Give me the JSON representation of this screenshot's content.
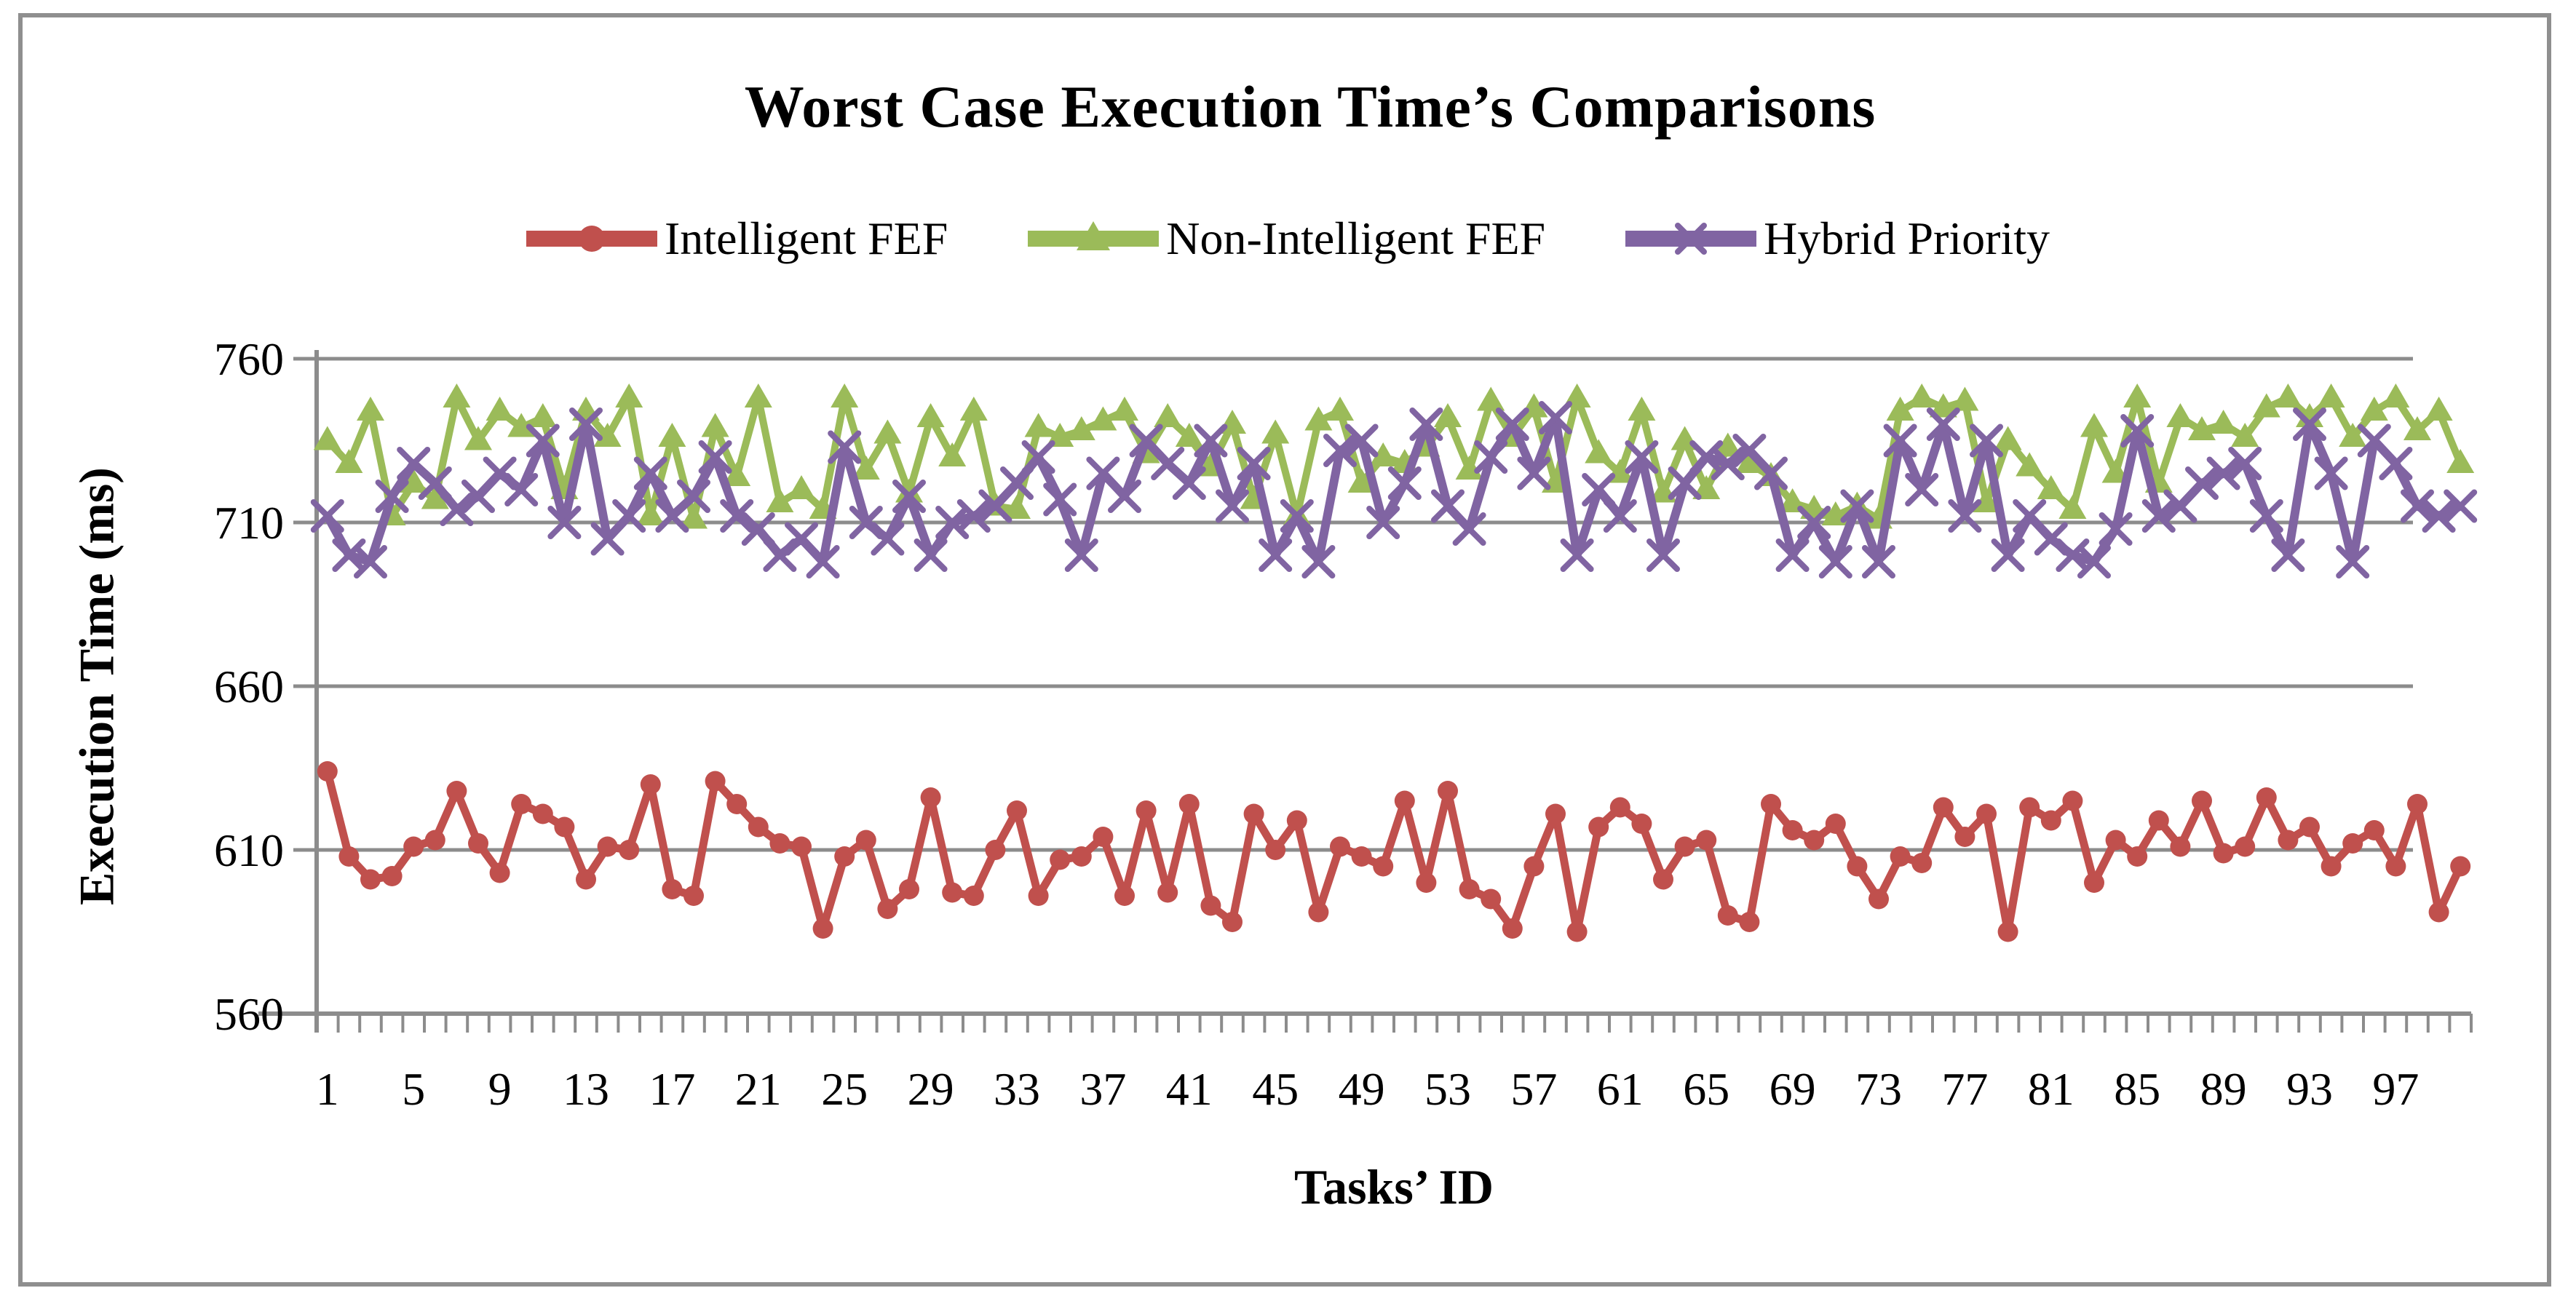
{
  "chart_data": {
    "type": "line",
    "title": "Worst Case Execution Time’s Comparisons",
    "xlabel": "Tasks’ ID",
    "ylabel": "Execution Time (ms)",
    "ylim": [
      560,
      760
    ],
    "xlim": [
      1,
      100
    ],
    "y_ticks": [
      760,
      710,
      660,
      610,
      560
    ],
    "x_tick_labels": [
      "1",
      "5",
      "9",
      "13",
      "17",
      "21",
      "25",
      "29",
      "33",
      "37",
      "41",
      "45",
      "49",
      "53",
      "57",
      "61",
      "65",
      "69",
      "73",
      "77",
      "81",
      "85",
      "89",
      "93",
      "97"
    ],
    "grid": true,
    "legend_position": "top",
    "axis_color": "#8C8C8C",
    "series": [
      {
        "name": "Intelligent FEF",
        "color": "#C0504D",
        "marker": "circle",
        "values": [
          634,
          608,
          601,
          602,
          611,
          613,
          628,
          612,
          603,
          624,
          621,
          617,
          601,
          611,
          610,
          630,
          598,
          596,
          631,
          624,
          617,
          612,
          611,
          586,
          608,
          613,
          592,
          598,
          626,
          597,
          596,
          610,
          622,
          596,
          607,
          608,
          614,
          596,
          622,
          597,
          624,
          593,
          588,
          621,
          610,
          619,
          591,
          611,
          608,
          605,
          625,
          600,
          628,
          598,
          595,
          586,
          605,
          621,
          585,
          617,
          623,
          618,
          601,
          611,
          613,
          590,
          588,
          624,
          616,
          613,
          618,
          605,
          595,
          608,
          606,
          623,
          614,
          621,
          585,
          623,
          619,
          625,
          600,
          613,
          608,
          619,
          611,
          625,
          609,
          611,
          626,
          613,
          617,
          605,
          612,
          616,
          605,
          624,
          591,
          605
        ]
      },
      {
        "name": "Non-Intelligent FEF",
        "color": "#9BBB59",
        "marker": "triangle",
        "values": [
          735,
          728,
          744,
          712,
          722,
          717,
          748,
          735,
          744,
          739,
          742,
          720,
          744,
          736,
          748,
          712,
          736,
          711,
          739,
          724,
          748,
          716,
          720,
          714,
          748,
          726,
          737,
          719,
          742,
          730,
          744,
          715,
          714,
          739,
          736,
          738,
          741,
          744,
          731,
          742,
          736,
          727,
          740,
          717,
          737,
          712,
          741,
          744,
          722,
          730,
          728,
          733,
          742,
          726,
          747,
          736,
          745,
          722,
          748,
          731,
          725,
          744,
          719,
          735,
          720,
          733,
          728,
          724,
          716,
          714,
          712,
          715,
          711,
          744,
          748,
          745,
          747,
          716,
          735,
          727,
          720,
          714,
          739,
          725,
          748,
          722,
          742,
          738,
          740,
          736,
          745,
          748,
          742,
          748,
          736,
          744,
          748,
          738,
          744,
          728
        ]
      },
      {
        "name": "Hybrid Priority",
        "color": "#8064A2",
        "marker": "x",
        "values": [
          712,
          700,
          698,
          718,
          728,
          722,
          714,
          718,
          725,
          720,
          735,
          710,
          740,
          705,
          712,
          725,
          712,
          718,
          730,
          712,
          708,
          700,
          705,
          698,
          733,
          710,
          705,
          718,
          700,
          710,
          712,
          715,
          722,
          730,
          717,
          700,
          725,
          718,
          735,
          728,
          722,
          735,
          715,
          728,
          700,
          712,
          698,
          732,
          735,
          710,
          722,
          740,
          715,
          708,
          730,
          740,
          725,
          742,
          700,
          720,
          712,
          730,
          700,
          722,
          730,
          728,
          732,
          725,
          700,
          710,
          698,
          715,
          698,
          735,
          720,
          740,
          712,
          735,
          700,
          712,
          705,
          700,
          698,
          708,
          738,
          712,
          715,
          722,
          725,
          728,
          712,
          700,
          740,
          725,
          698,
          735,
          728,
          715,
          712,
          715
        ]
      }
    ]
  }
}
